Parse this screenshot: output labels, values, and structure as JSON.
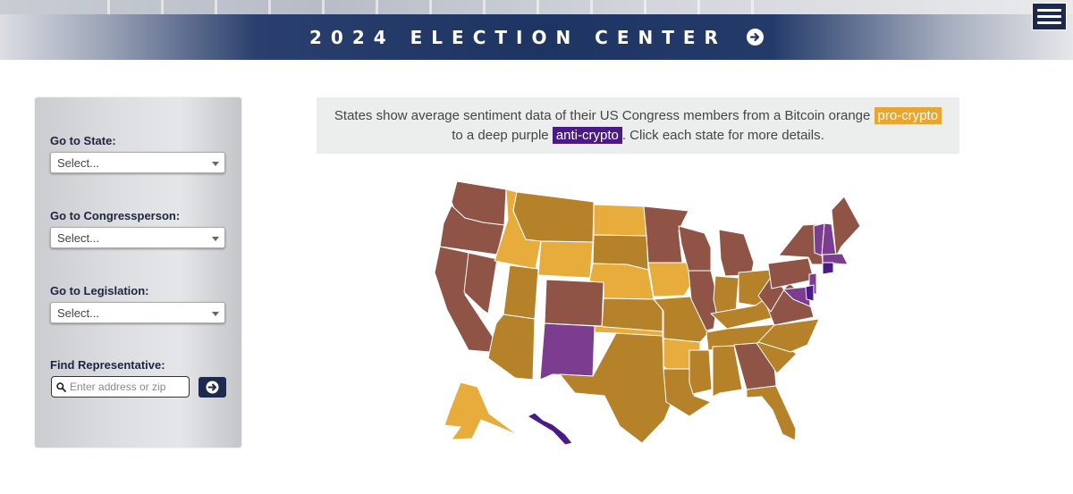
{
  "header": {
    "title": "2024 ELECTION CENTER",
    "arrow_icon": "arrow-right-circle-icon",
    "menu_icon": "hamburger-menu-icon"
  },
  "sidebar": {
    "state_label": "Go to State:",
    "state_select": "Select...",
    "congress_label": "Go to Congressperson:",
    "congress_select": "Select...",
    "legislation_label": "Go to Legislation:",
    "legislation_select": "Select...",
    "find_label": "Find Representative:",
    "find_placeholder": "Enter address or zip",
    "search_icon": "search-icon",
    "go_icon": "arrow-right-circle-icon"
  },
  "legend": {
    "text_before": "States show average sentiment data of their US Congress members from a Bitcoin orange ",
    "pro_tag": "pro-crypto",
    "text_middle": " to a deep purple ",
    "anti_tag": "anti-crypto",
    "text_after": ". Click each state for more details."
  },
  "colors": {
    "pro_strong": "#e8ac3c",
    "pro": "#b58129",
    "neutral": "#8f5446",
    "anti": "#7c3d91",
    "anti_strong": "#4b1a86",
    "header_navy": "#1e3463"
  },
  "map": {
    "states": [
      {
        "code": "WA",
        "color": "#8f5446"
      },
      {
        "code": "OR",
        "color": "#8f5446"
      },
      {
        "code": "CA",
        "color": "#8f5446"
      },
      {
        "code": "NV",
        "color": "#8f5446"
      },
      {
        "code": "ID",
        "color": "#e8ac3c"
      },
      {
        "code": "MT",
        "color": "#b58129"
      },
      {
        "code": "WY",
        "color": "#e8ac3c"
      },
      {
        "code": "UT",
        "color": "#b58129"
      },
      {
        "code": "AZ",
        "color": "#b58129"
      },
      {
        "code": "CO",
        "color": "#8f5446"
      },
      {
        "code": "NM",
        "color": "#7c3d91"
      },
      {
        "code": "ND",
        "color": "#e8ac3c"
      },
      {
        "code": "SD",
        "color": "#b58129"
      },
      {
        "code": "NE",
        "color": "#e8ac3c"
      },
      {
        "code": "KS",
        "color": "#b58129"
      },
      {
        "code": "OK",
        "color": "#e8ac3c"
      },
      {
        "code": "TX",
        "color": "#b58129"
      },
      {
        "code": "MN",
        "color": "#8f5446"
      },
      {
        "code": "IA",
        "color": "#e8ac3c"
      },
      {
        "code": "MO",
        "color": "#b58129"
      },
      {
        "code": "AR",
        "color": "#e8ac3c"
      },
      {
        "code": "LA",
        "color": "#b58129"
      },
      {
        "code": "WI",
        "color": "#8f5446"
      },
      {
        "code": "IL",
        "color": "#8f5446"
      },
      {
        "code": "MI",
        "color": "#8f5446"
      },
      {
        "code": "IN",
        "color": "#b58129"
      },
      {
        "code": "OH",
        "color": "#b58129"
      },
      {
        "code": "KY",
        "color": "#b58129"
      },
      {
        "code": "TN",
        "color": "#b58129"
      },
      {
        "code": "MS",
        "color": "#b58129"
      },
      {
        "code": "AL",
        "color": "#b58129"
      },
      {
        "code": "GA",
        "color": "#8f5446"
      },
      {
        "code": "FL",
        "color": "#b58129"
      },
      {
        "code": "SC",
        "color": "#b58129"
      },
      {
        "code": "NC",
        "color": "#b58129"
      },
      {
        "code": "VA",
        "color": "#8f5446"
      },
      {
        "code": "WV",
        "color": "#8f5446"
      },
      {
        "code": "PA",
        "color": "#8f5446"
      },
      {
        "code": "NY",
        "color": "#8f5446"
      },
      {
        "code": "VT",
        "color": "#7c3d91"
      },
      {
        "code": "NH",
        "color": "#7c3d91"
      },
      {
        "code": "ME",
        "color": "#8f5446"
      },
      {
        "code": "MA",
        "color": "#7c3d91"
      },
      {
        "code": "CT",
        "color": "#4b1a86"
      },
      {
        "code": "NJ",
        "color": "#7c3d91"
      },
      {
        "code": "MD",
        "color": "#7c3d91"
      },
      {
        "code": "DE",
        "color": "#4b1a86"
      },
      {
        "code": "AK",
        "color": "#e8ac3c"
      },
      {
        "code": "HI",
        "color": "#4b1a86"
      }
    ]
  }
}
